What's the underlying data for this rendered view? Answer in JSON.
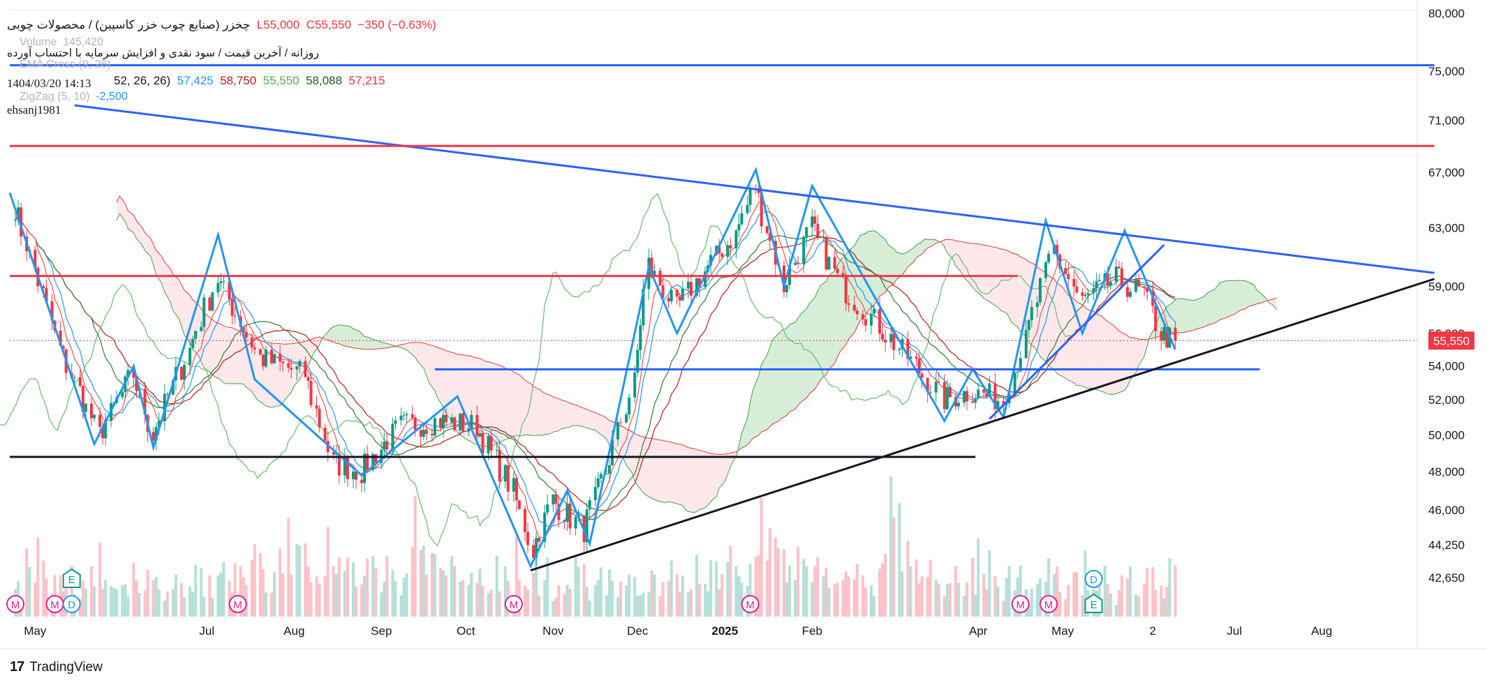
{
  "legend": {
    "symbol_title": "چخزر (صنایع چوب خزر کاسپین) / محصولات چوبی",
    "low": "L55,000",
    "close": "C55,550",
    "change": "−350 (−0.63%)",
    "subtitle": "روزانه / آخرین قیمت / سود نقدی و افزایش سرمایه با احتساب آورده",
    "ghost_volume": "Volume",
    "ghost_volume_value": "145,420",
    "ghost_ema": "EMA Cross (9, 26)",
    "ichimoku_params": "52, 26, 26)",
    "ichimoku_values": [
      "57,425",
      "58,750",
      "55,550",
      "58,088",
      "57,215"
    ],
    "datetime": "1404/03/20 14:13",
    "zigzag": "ZigZag (5, 10)",
    "zigzag_value": "-2,500",
    "author": "ehsanj1981"
  },
  "footer": {
    "brand": "TradingView"
  },
  "colors": {
    "up": "#089981",
    "down": "#f23645",
    "trend_blue": "#2962ff",
    "resistance_red": "#f23645",
    "support_black": "#131722",
    "cloud_green": "#a5d6a7",
    "cloud_red": "#ffcdd2",
    "zigzag": "#2196f3"
  },
  "chart_data": {
    "type": "candlestick",
    "symbol": "چخزر",
    "interval": "روزانه",
    "last_price": 55550,
    "last_price_label": "55,550",
    "y_axis": {
      "scale": "log",
      "range": [
        41000,
        81000
      ],
      "ticks": [
        {
          "v": 80000,
          "label": "80,000"
        },
        {
          "v": 75000,
          "label": "75,000"
        },
        {
          "v": 71000,
          "label": "71,000"
        },
        {
          "v": 67000,
          "label": "67,000"
        },
        {
          "v": 63000,
          "label": "63,000"
        },
        {
          "v": 59000,
          "label": "59,000"
        },
        {
          "v": 56000,
          "label": "56,000"
        },
        {
          "v": 54000,
          "label": "54,000"
        },
        {
          "v": 52000,
          "label": "52,000"
        },
        {
          "v": 50000,
          "label": "50,000"
        },
        {
          "v": 48000,
          "label": "48,000"
        },
        {
          "v": 46000,
          "label": "46,000"
        },
        {
          "v": 44250,
          "label": "44,250"
        },
        {
          "v": 42650,
          "label": "42,650"
        }
      ]
    },
    "x_axis": {
      "ticks": [
        {
          "date": "2024-05-01",
          "label": "May",
          "bold": false
        },
        {
          "date": "2024-07-01",
          "label": "Jul",
          "bold": false
        },
        {
          "date": "2024-08-01",
          "label": "Aug",
          "bold": false
        },
        {
          "date": "2024-09-01",
          "label": "Sep",
          "bold": false
        },
        {
          "date": "2024-10-01",
          "label": "Oct",
          "bold": false
        },
        {
          "date": "2024-11-01",
          "label": "Nov",
          "bold": false
        },
        {
          "date": "2024-12-01",
          "label": "Dec",
          "bold": false
        },
        {
          "date": "2025-01-01",
          "label": "2025",
          "bold": true
        },
        {
          "date": "2025-02-01",
          "label": "Feb",
          "bold": false
        },
        {
          "date": "2025-04-01",
          "label": "Apr",
          "bold": false
        },
        {
          "date": "2025-05-01",
          "label": "May",
          "bold": false
        },
        {
          "date": "2025-06-02",
          "label": "2",
          "bold": false
        },
        {
          "date": "2025-07-01",
          "label": "Jul",
          "bold": false
        },
        {
          "date": "2025-08-01",
          "label": "Aug",
          "bold": false
        }
      ]
    },
    "price_path": [
      [
        "2024-04-24",
        64500
      ],
      [
        "2024-05-10",
        55000
      ],
      [
        "2024-05-24",
        50000
      ],
      [
        "2024-06-05",
        53500
      ],
      [
        "2024-06-12",
        50000
      ],
      [
        "2024-06-25",
        55000
      ],
      [
        "2024-07-05",
        59500
      ],
      [
        "2024-07-20",
        54500
      ],
      [
        "2024-08-05",
        53500
      ],
      [
        "2024-08-15",
        48500
      ],
      [
        "2024-08-25",
        48000
      ],
      [
        "2024-09-08",
        50500
      ],
      [
        "2024-09-22",
        50800
      ],
      [
        "2024-10-05",
        50500
      ],
      [
        "2024-10-18",
        47000
      ],
      [
        "2024-10-25",
        44000
      ],
      [
        "2024-11-01",
        46500
      ],
      [
        "2024-11-12",
        45000
      ],
      [
        "2024-11-20",
        48000
      ],
      [
        "2024-11-30",
        53000
      ],
      [
        "2024-12-05",
        60500
      ],
      [
        "2024-12-15",
        57500
      ],
      [
        "2024-12-25",
        60000
      ],
      [
        "2025-01-05",
        62500
      ],
      [
        "2025-01-12",
        66000
      ],
      [
        "2025-01-22",
        59000
      ],
      [
        "2025-02-01",
        63000
      ],
      [
        "2025-02-12",
        59000
      ],
      [
        "2025-02-25",
        56500
      ],
      [
        "2025-03-10",
        54000
      ],
      [
        "2025-03-20",
        52000
      ],
      [
        "2025-03-30",
        52500
      ],
      [
        "2025-04-10",
        52000
      ],
      [
        "2025-04-18",
        55500
      ],
      [
        "2025-04-28",
        61500
      ],
      [
        "2025-05-08",
        58000
      ],
      [
        "2025-05-20",
        59500
      ],
      [
        "2025-05-30",
        58500
      ],
      [
        "2025-06-05",
        56000
      ],
      [
        "2025-06-10",
        55550
      ]
    ],
    "zigzag_points": [
      [
        "2024-04-22",
        65500
      ],
      [
        "2024-05-22",
        49500
      ],
      [
        "2024-06-05",
        54000
      ],
      [
        "2024-06-12",
        49300
      ],
      [
        "2024-07-05",
        62500
      ],
      [
        "2024-07-18",
        53200
      ],
      [
        "2024-08-25",
        47800
      ],
      [
        "2024-09-28",
        52200
      ],
      [
        "2024-10-24",
        43200
      ],
      [
        "2024-11-06",
        47000
      ],
      [
        "2024-11-14",
        44300
      ],
      [
        "2024-12-05",
        60300
      ],
      [
        "2024-12-15",
        56000
      ],
      [
        "2025-01-12",
        67200
      ],
      [
        "2025-01-22",
        59000
      ],
      [
        "2025-02-01",
        66000
      ],
      [
        "2025-03-20",
        50800
      ],
      [
        "2025-03-30",
        53800
      ],
      [
        "2025-04-10",
        51000
      ],
      [
        "2025-04-25",
        63500
      ],
      [
        "2025-05-08",
        56000
      ],
      [
        "2025-05-23",
        62800
      ],
      [
        "2025-06-10",
        55000
      ]
    ],
    "drawings": [
      {
        "type": "trendline",
        "color": "blue",
        "from": [
          "2024-05-15",
          72200
        ],
        "to": [
          "2025-09-10",
          59900
        ]
      },
      {
        "type": "hline",
        "color": "blue",
        "from": [
          "2024-04-22",
          75500
        ],
        "to": [
          "2025-09-10",
          75500
        ]
      },
      {
        "type": "hline",
        "color": "red",
        "from": [
          "2024-04-22",
          69000
        ],
        "to": [
          "2025-09-10",
          69000
        ]
      },
      {
        "type": "hline",
        "color": "red",
        "from": [
          "2024-04-22",
          59700
        ],
        "to": [
          "2025-04-15",
          59700
        ]
      },
      {
        "type": "hline",
        "color": "blue",
        "from": [
          "2024-09-20",
          53800
        ],
        "to": [
          "2025-07-10",
          53800
        ]
      },
      {
        "type": "hline",
        "color": "black",
        "from": [
          "2024-04-22",
          48800
        ],
        "to": [
          "2025-03-31",
          48800
        ]
      },
      {
        "type": "trendline",
        "color": "black",
        "from": [
          "2024-10-24",
          43000
        ],
        "to": [
          "2025-09-10",
          59500
        ]
      },
      {
        "type": "trendline",
        "color": "blue",
        "from": [
          "2025-04-05",
          50900
        ],
        "to": [
          "2025-06-06",
          61800
        ]
      }
    ],
    "volume": {
      "max": 100,
      "bars": [
        30,
        45,
        20,
        55,
        35,
        25,
        60,
        40,
        30,
        20,
        35,
        50,
        25,
        30,
        45,
        20,
        15,
        30,
        25,
        40,
        30,
        55,
        35,
        45,
        25,
        20,
        30,
        40,
        35,
        25,
        50,
        30,
        20,
        25,
        35,
        45,
        30,
        20,
        15,
        25,
        30,
        35,
        40,
        20,
        25,
        30,
        45,
        35,
        25,
        30,
        20,
        35,
        55,
        40,
        30,
        25,
        45,
        50,
        35,
        30,
        40,
        55,
        45,
        35,
        30,
        25,
        40,
        60,
        50,
        85,
        45,
        70,
        60,
        55,
        50,
        40,
        45,
        35,
        50,
        65,
        40,
        35,
        45,
        55,
        50,
        40,
        35,
        30,
        40,
        45,
        50,
        35,
        30,
        40,
        45,
        35,
        30,
        25,
        35,
        40,
        55,
        100,
        70,
        85,
        50,
        60,
        45,
        40,
        35,
        30,
        45,
        40,
        35,
        30,
        25,
        35,
        30,
        40,
        25,
        20
      ]
    },
    "event_markers": [
      {
        "date": "2024-04-24",
        "letter": "M"
      },
      {
        "date": "2024-05-08",
        "letter": "M"
      },
      {
        "date": "2024-05-14",
        "letter": "D"
      },
      {
        "date": "2024-05-14",
        "letter": "E",
        "upper": true
      },
      {
        "date": "2024-07-12",
        "letter": "M"
      },
      {
        "date": "2024-10-18",
        "letter": "M"
      },
      {
        "date": "2025-01-10",
        "letter": "M"
      },
      {
        "date": "2025-04-16",
        "letter": "M"
      },
      {
        "date": "2025-04-26",
        "letter": "M"
      },
      {
        "date": "2025-05-12",
        "letter": "E"
      },
      {
        "date": "2025-05-12",
        "letter": "D",
        "upper": true
      }
    ]
  }
}
